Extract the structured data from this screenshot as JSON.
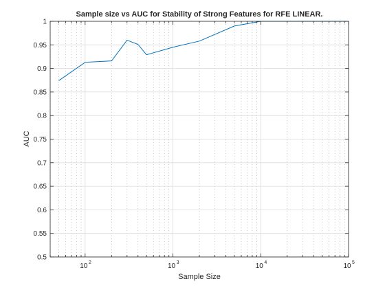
{
  "chart_data": {
    "type": "line",
    "title": "Sample size vs AUC for Stability of Strong Features for RFE LINEAR.",
    "xlabel": "Sample Size",
    "ylabel": "AUC",
    "xscale": "log",
    "xlim": [
      40,
      100000
    ],
    "ylim": [
      0.5,
      1
    ],
    "grid": true,
    "minor_grid": true,
    "x_ticks": [
      {
        "value": 100,
        "base": "10",
        "exp": "2"
      },
      {
        "value": 1000,
        "base": "10",
        "exp": "3"
      },
      {
        "value": 10000,
        "base": "10",
        "exp": "4"
      },
      {
        "value": 100000,
        "base": "10",
        "exp": "5"
      }
    ],
    "y_ticks": [
      {
        "value": 0.5,
        "label": "0.5"
      },
      {
        "value": 0.55,
        "label": "0.55"
      },
      {
        "value": 0.6,
        "label": "0.6"
      },
      {
        "value": 0.65,
        "label": "0.65"
      },
      {
        "value": 0.7,
        "label": "0.7"
      },
      {
        "value": 0.75,
        "label": "0.75"
      },
      {
        "value": 0.8,
        "label": "0.8"
      },
      {
        "value": 0.85,
        "label": "0.85"
      },
      {
        "value": 0.9,
        "label": "0.9"
      },
      {
        "value": 0.95,
        "label": "0.95"
      },
      {
        "value": 1,
        "label": "1"
      }
    ],
    "series": [
      {
        "color": "#0072bd",
        "x": [
          50,
          100,
          200,
          300,
          400,
          500,
          1000,
          2000,
          5000,
          10000,
          100000
        ],
        "y": [
          0.874,
          0.913,
          0.916,
          0.96,
          0.951,
          0.929,
          0.945,
          0.958,
          0.99,
          1.0,
          1.0
        ]
      }
    ]
  }
}
